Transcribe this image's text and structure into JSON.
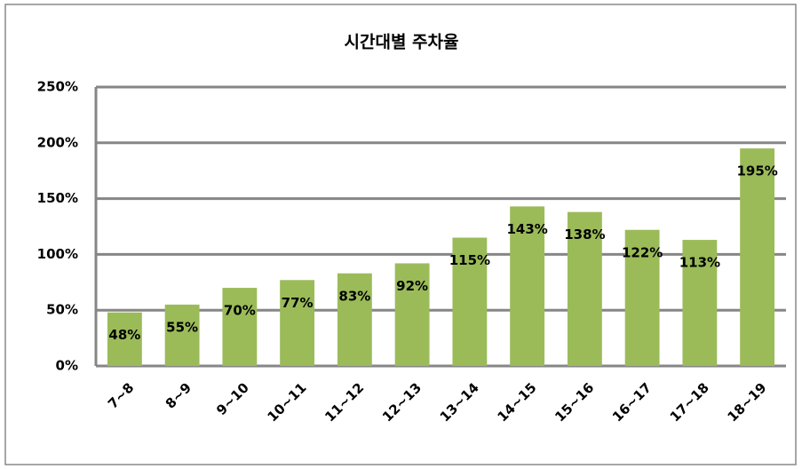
{
  "chart_data": {
    "type": "bar",
    "title": "시간대별 주차율",
    "categories": [
      "7~8",
      "8~9",
      "9~10",
      "10~11",
      "11~12",
      "12~13",
      "13~14",
      "14~15",
      "15~16",
      "16~17",
      "17~18",
      "18~19"
    ],
    "values": [
      48,
      55,
      70,
      77,
      83,
      92,
      115,
      143,
      138,
      122,
      113,
      195
    ],
    "value_labels": [
      "48%",
      "55%",
      "70%",
      "77%",
      "83%",
      "92%",
      "115%",
      "143%",
      "138%",
      "122%",
      "113%",
      "195%"
    ],
    "color": "#9bbb59",
    "ylim": [
      0,
      250
    ],
    "yticks": [
      {
        "value": 0,
        "label": "0%"
      },
      {
        "value": 50,
        "label": "50%"
      },
      {
        "value": 100,
        "label": "100%"
      },
      {
        "value": 150,
        "label": "150%"
      },
      {
        "value": 200,
        "label": "200%"
      },
      {
        "value": 250,
        "label": "250%"
      }
    ],
    "grid": true
  }
}
